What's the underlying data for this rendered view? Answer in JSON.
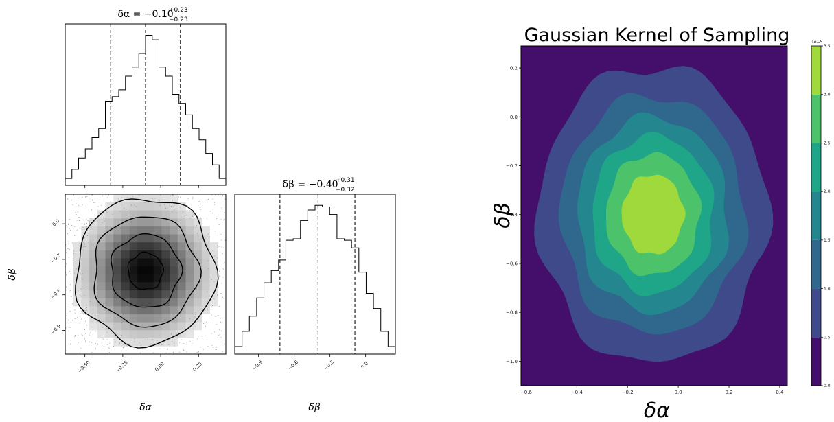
{
  "chart_data": [
    {
      "type": "histogram",
      "panel": "corner-top-left",
      "param": "δα",
      "title_main": "δα = −0.10",
      "title_sup": "+0.23",
      "title_sub": "−0.23",
      "x_range": [
        -0.63,
        0.43
      ],
      "bin_counts": [
        3,
        7,
        12,
        16,
        21,
        25,
        37,
        39,
        42,
        48,
        52,
        58,
        66,
        64,
        52,
        48,
        40,
        36,
        31,
        25,
        20,
        14,
        9,
        3
      ],
      "quantile_lines": [
        -0.33,
        -0.1,
        0.13
      ],
      "tick_values": [
        -0.5,
        -0.25,
        0.0,
        0.25
      ],
      "tick_labels": [
        "−0.50",
        "−0.25",
        "0.00",
        "0.25"
      ]
    },
    {
      "type": "heatmap",
      "panel": "corner-bottom-left",
      "xlabel": "δα",
      "ylabel": "δβ",
      "x_range": [
        -0.63,
        0.43
      ],
      "y_range": [
        -1.1,
        0.25
      ],
      "center": [
        -0.1,
        -0.4
      ],
      "sigma": [
        0.23,
        0.31
      ],
      "x_tick_values": [
        -0.5,
        -0.25,
        0.0,
        0.25
      ],
      "x_tick_labels": [
        "−0.50",
        "−0.25",
        "0.00",
        "0.25"
      ],
      "y_tick_values": [
        0.0,
        -0.3,
        -0.6,
        -0.9
      ],
      "y_tick_labels": [
        "0.0",
        "−0.3",
        "−0.6",
        "−0.9"
      ],
      "contour_levels": 4
    },
    {
      "type": "histogram",
      "panel": "corner-bottom-right",
      "param": "δβ",
      "xlabel": "δβ",
      "title_main": "δβ = −0.40",
      "title_sup": "+0.31",
      "title_sub": "−0.32",
      "x_range": [
        -1.1,
        0.25
      ],
      "bin_counts": [
        5,
        15,
        25,
        37,
        47,
        55,
        62,
        75,
        76,
        88,
        95,
        98,
        97,
        92,
        76,
        75,
        70,
        54,
        40,
        30,
        15,
        5
      ],
      "quantile_lines": [
        -0.72,
        -0.4,
        -0.09
      ],
      "tick_values": [
        -0.9,
        -0.6,
        -0.3,
        0.0
      ],
      "tick_labels": [
        "−0.9",
        "−0.6",
        "−0.3",
        "0.0"
      ]
    },
    {
      "type": "heatmap",
      "panel": "kde",
      "title": "Gaussian Kernel of Sampling",
      "xlabel": "δα",
      "ylabel": "δβ",
      "x_range": [
        -0.62,
        0.43
      ],
      "y_range": [
        -1.1,
        0.29
      ],
      "center": [
        -0.1,
        -0.4
      ],
      "sigma": [
        0.23,
        0.31
      ],
      "peak": 3.45e-05,
      "x_tick_values": [
        -0.6,
        -0.4,
        -0.2,
        0.0,
        0.2,
        0.4
      ],
      "x_tick_labels": [
        "−0.6",
        "−0.4",
        "−0.2",
        "0.0",
        "0.2",
        "0.4"
      ],
      "y_tick_values": [
        0.2,
        0.0,
        -0.2,
        -0.4,
        -0.6,
        -0.8,
        -1.0
      ],
      "y_tick_labels": [
        "0.2",
        "0.0",
        "−0.2",
        "−0.4",
        "−0.6",
        "−0.8",
        "−1.0"
      ],
      "levels": [
        0,
        0.5,
        1.0,
        1.5,
        2.0,
        2.5,
        3.0,
        3.5
      ],
      "level_colors": [
        "#440f6b",
        "#3f4a8a",
        "#30678d",
        "#24868e",
        "#1fa587",
        "#4cc26a",
        "#a0d93c",
        "#dfe318"
      ],
      "colorbar_scale": "1e−5",
      "colorbar_tick_values": [
        0.0,
        0.5,
        1.0,
        1.5,
        2.0,
        2.5,
        3.0,
        3.5
      ],
      "colorbar_tick_labels": [
        "0.0",
        "0.5",
        "1.0",
        "1.5",
        "2.0",
        "2.5",
        "3.0",
        "3.5"
      ]
    }
  ]
}
